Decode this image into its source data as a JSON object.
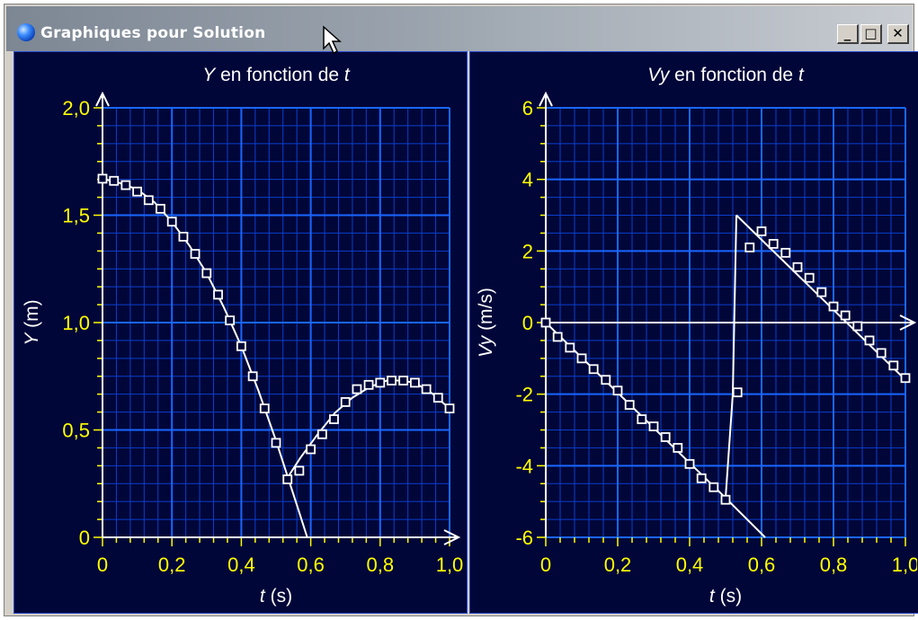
{
  "window": {
    "title": "Graphiques pour Solution",
    "minimize_label": "_",
    "maximize_label": "□",
    "close_label": "✕",
    "title_icon": "globe-icon"
  },
  "colors": {
    "plot_bg": "#000638",
    "grid_major": "#1a66ff",
    "grid_minor": "#0b3fcf",
    "tick_label": "#ffff00",
    "axis_text": "#ffffff",
    "curve": "#ffffff"
  },
  "chart_data": [
    {
      "type": "line",
      "title_parts": [
        "Y",
        " en fonction de ",
        "t"
      ],
      "xlabel": "t (s)",
      "ylabel": "Y (m)",
      "xlim": [
        0,
        1.0
      ],
      "ylim": [
        0,
        2.0
      ],
      "x_ticks": [
        "0",
        "0,2",
        "0,4",
        "0,6",
        "0,8",
        "1,0"
      ],
      "y_ticks": [
        "0",
        "0,5",
        "1,0",
        "1,5",
        "2,0"
      ],
      "grid": true,
      "series": [
        {
          "kind": "line",
          "x": [
            0,
            0.05,
            0.1,
            0.15,
            0.2,
            0.25,
            0.3,
            0.35,
            0.4,
            0.45,
            0.5,
            0.53,
            0.56,
            0.59
          ],
          "y": [
            1.67,
            1.65,
            1.62,
            1.56,
            1.47,
            1.36,
            1.23,
            1.07,
            0.89,
            0.68,
            0.45,
            0.3,
            0.15,
            0
          ]
        },
        {
          "kind": "line",
          "x": [
            0.53,
            0.57,
            0.62,
            0.67,
            0.72,
            0.77,
            0.82,
            0.86,
            0.9,
            0.95,
            1.0
          ],
          "y": [
            0.27,
            0.37,
            0.48,
            0.58,
            0.65,
            0.7,
            0.73,
            0.73,
            0.72,
            0.67,
            0.6
          ]
        },
        {
          "kind": "markers",
          "x": [
            0,
            0.033,
            0.067,
            0.1,
            0.133,
            0.167,
            0.2,
            0.233,
            0.267,
            0.3,
            0.333,
            0.367,
            0.4,
            0.433,
            0.467,
            0.5,
            0.533,
            0.567,
            0.6,
            0.633,
            0.667,
            0.7,
            0.733,
            0.767,
            0.8,
            0.833,
            0.867,
            0.9,
            0.933,
            0.967,
            1.0
          ],
          "y": [
            1.67,
            1.66,
            1.64,
            1.61,
            1.57,
            1.53,
            1.47,
            1.4,
            1.32,
            1.23,
            1.13,
            1.01,
            0.89,
            0.75,
            0.6,
            0.44,
            0.27,
            0.31,
            0.41,
            0.48,
            0.55,
            0.63,
            0.69,
            0.71,
            0.72,
            0.73,
            0.73,
            0.72,
            0.69,
            0.65,
            0.6
          ]
        }
      ]
    },
    {
      "type": "line",
      "title_parts": [
        "Vy",
        " en fonction de ",
        "t"
      ],
      "xlabel": "t (s)",
      "ylabel": "Vy (m/s)",
      "xlim": [
        0,
        1.0
      ],
      "ylim": [
        -6,
        6
      ],
      "x_ticks": [
        "0",
        "0,2",
        "0,4",
        "0,6",
        "0,8",
        "1,0"
      ],
      "y_ticks": [
        "-6",
        "-4",
        "-2",
        "0",
        "2",
        "4",
        "6"
      ],
      "grid": true,
      "series": [
        {
          "kind": "line",
          "x": [
            0,
            0.5,
            0.52,
            0.53
          ],
          "y": [
            0,
            -4.9,
            -2.0,
            3.0
          ]
        },
        {
          "kind": "line",
          "x": [
            0.5,
            0.61
          ],
          "y": [
            -4.9,
            -6.0
          ]
        },
        {
          "kind": "line",
          "x": [
            0.53,
            1.0
          ],
          "y": [
            3.0,
            -1.6
          ]
        },
        {
          "kind": "markers",
          "x": [
            0,
            0.033,
            0.067,
            0.1,
            0.133,
            0.167,
            0.2,
            0.233,
            0.267,
            0.3,
            0.333,
            0.367,
            0.4,
            0.433,
            0.467,
            0.5,
            0.533,
            0.567,
            0.6,
            0.633,
            0.667,
            0.7,
            0.733,
            0.767,
            0.8,
            0.833,
            0.867,
            0.9,
            0.933,
            0.967,
            1.0
          ],
          "y": [
            0,
            -0.4,
            -0.7,
            -1.0,
            -1.3,
            -1.6,
            -1.9,
            -2.3,
            -2.7,
            -2.9,
            -3.2,
            -3.5,
            -3.95,
            -4.35,
            -4.6,
            -4.95,
            -1.95,
            2.1,
            2.55,
            2.2,
            1.95,
            1.55,
            1.25,
            0.85,
            0.45,
            0.2,
            -0.1,
            -0.5,
            -0.85,
            -1.2,
            -1.55
          ]
        }
      ]
    }
  ]
}
